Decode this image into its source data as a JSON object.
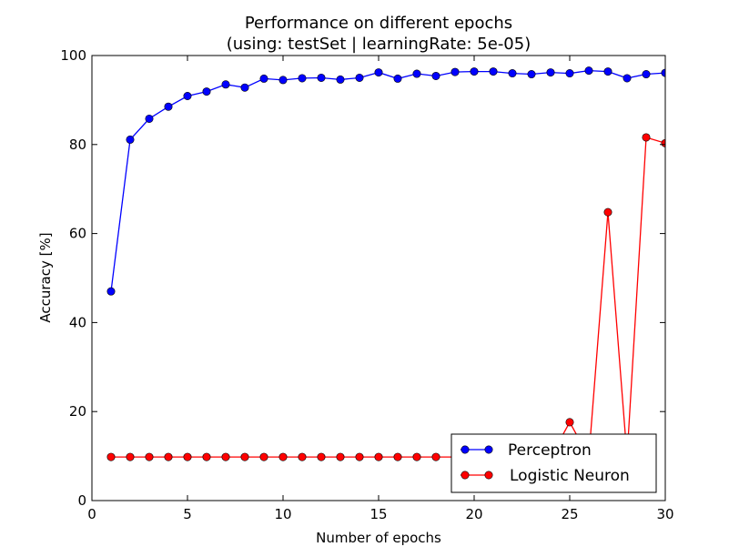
{
  "chart_data": {
    "type": "line",
    "title": "Performance on different epochs",
    "subtitle": "(using: testSet | learningRate: 5e-05)",
    "xlabel": "Number of epochs",
    "ylabel": "Accuracy [%]",
    "xlim": [
      0,
      30
    ],
    "ylim": [
      0,
      100
    ],
    "xticks": [
      "0",
      "5",
      "10",
      "15",
      "20",
      "25",
      "30"
    ],
    "yticks": [
      "0",
      "20",
      "40",
      "60",
      "80",
      "100"
    ],
    "grid": false,
    "legend_position": "lower-right",
    "x": [
      1,
      2,
      3,
      4,
      5,
      6,
      7,
      8,
      9,
      10,
      11,
      12,
      13,
      14,
      15,
      16,
      17,
      18,
      19,
      20,
      21,
      22,
      23,
      24,
      25,
      26,
      27,
      28,
      29,
      30
    ],
    "series": [
      {
        "name": "Perceptron",
        "color": "#0000ff",
        "values": [
          47.0,
          81.1,
          85.8,
          88.5,
          90.9,
          91.9,
          93.5,
          92.8,
          94.8,
          94.5,
          94.9,
          95.0,
          94.6,
          95.0,
          96.2,
          94.8,
          95.9,
          95.4,
          96.3,
          96.4,
          96.4,
          96.0,
          95.8,
          96.2,
          96.0,
          96.6,
          96.4,
          94.9,
          95.8,
          96.1
        ]
      },
      {
        "name": "Logistic Neuron",
        "color": "#ff0000",
        "values": [
          9.8,
          9.8,
          9.8,
          9.8,
          9.8,
          9.8,
          9.8,
          9.8,
          9.8,
          9.8,
          9.8,
          9.8,
          9.8,
          9.8,
          9.8,
          9.8,
          9.8,
          9.8,
          9.8,
          9.8,
          9.8,
          9.8,
          9.8,
          9.8,
          17.6,
          9.8,
          64.8,
          9.8,
          81.6,
          80.3
        ]
      }
    ]
  }
}
